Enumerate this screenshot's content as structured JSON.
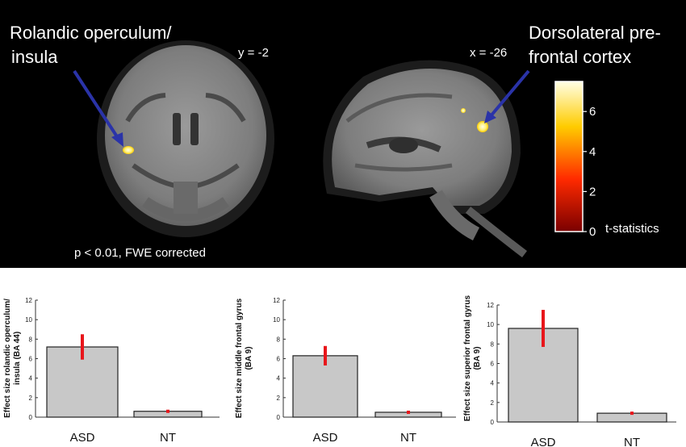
{
  "brain": {
    "coronal_label": "Rolandic operculum/\ninsula",
    "coronal_coord": "y = -2",
    "sagittal_label": "Dorsolateral pre-\nfrontal cortex",
    "sagittal_coord": "x = -26",
    "threshold": "p < 0.01, FWE corrected",
    "colorbar": {
      "title": "t-statistics",
      "ticks": [
        "0",
        "2",
        "4",
        "6"
      ],
      "min": 0,
      "max": 7.5,
      "colors": [
        "#7a0000",
        "#ff2a00",
        "#ffcc00",
        "#ffffe6"
      ]
    },
    "arrow_color": "#2a33a8"
  },
  "chart_data": [
    {
      "type": "bar",
      "categories": [
        "ASD",
        "NT"
      ],
      "values": [
        7.2,
        0.6
      ],
      "errors": [
        1.3,
        0.1
      ],
      "ylabel": "Effect size rolandic operculum/\ninsula (BA 44)",
      "ylim": [
        0,
        12
      ],
      "yticks": [
        "0",
        "2",
        "4",
        "6",
        "8",
        "10",
        "12"
      ],
      "bar_color": "#c8c8c8",
      "error_color": "#e8161b"
    },
    {
      "type": "bar",
      "categories": [
        "ASD",
        "NT"
      ],
      "values": [
        6.3,
        0.5
      ],
      "errors": [
        1.0,
        0.05
      ],
      "ylabel": "Effect size middle frontal gyrus\n(BA 9)",
      "ylim": [
        0,
        12
      ],
      "yticks": [
        "0",
        "2",
        "4",
        "6",
        "8",
        "10",
        "12"
      ],
      "bar_color": "#c8c8c8",
      "error_color": "#e8161b"
    },
    {
      "type": "bar",
      "categories": [
        "ASD",
        "NT"
      ],
      "values": [
        9.6,
        0.9
      ],
      "errors": [
        1.9,
        0.15
      ],
      "ylabel": "Effect size superior frontal gyrus\n(BA 9)",
      "ylim": [
        0,
        12
      ],
      "yticks": [
        "0",
        "2",
        "4",
        "6",
        "8",
        "10",
        "12"
      ],
      "bar_color": "#c8c8c8",
      "error_color": "#e8161b"
    }
  ]
}
